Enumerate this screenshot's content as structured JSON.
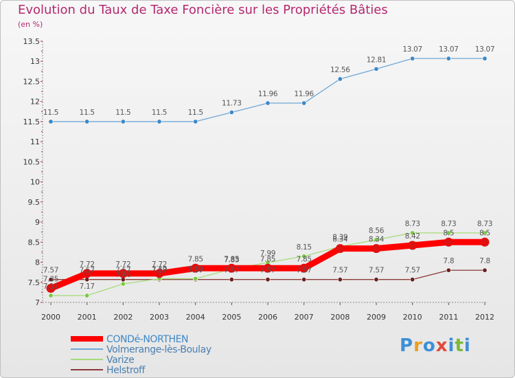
{
  "title": "Evolution du Taux de Taxe Foncière sur les Propriétés Bâties",
  "unit_label": "(en %)",
  "logo": {
    "letters": [
      "P",
      "r",
      "o",
      "x",
      "i",
      "t",
      "i"
    ],
    "colors": [
      "#3c8fd8",
      "#e8a020",
      "#3c8fd8",
      "#e04a3a",
      "#3c8fd8",
      "#7ab83a",
      "#3c8fd8"
    ]
  },
  "chart_data": {
    "type": "line",
    "x": [
      "2000",
      "2001",
      "2002",
      "2003",
      "2004",
      "2005",
      "2006",
      "2007",
      "2008",
      "2009",
      "2010",
      "2011",
      "2012"
    ],
    "ylim": [
      7,
      13.5
    ],
    "yticks": [
      "7",
      "7.5",
      "8",
      "8.5",
      "9",
      "9.5",
      "10",
      "10.5",
      "11",
      "11.5",
      "12",
      "12.5",
      "13",
      "13.5"
    ],
    "grid": false,
    "legend_position": "bottom-left",
    "series": [
      {
        "name": "CONDé-NORTHEN",
        "color": "#ff0000",
        "marker_color": "#e01010",
        "values": [
          7.35,
          7.72,
          7.72,
          7.72,
          7.85,
          7.85,
          7.85,
          7.85,
          8.34,
          8.34,
          8.42,
          8.5,
          8.5
        ],
        "labels": [
          "7.35",
          "7.72",
          "7.72",
          "7.72",
          "7.85",
          "7.85",
          "7.85",
          "7.85",
          "8.34",
          "8.34",
          "8.42",
          "8.5",
          "8.5"
        ]
      },
      {
        "name": "Volmerange-lès-Boulay",
        "color": "#6fa7d6",
        "marker_color": "#3d88c8",
        "values": [
          11.5,
          11.5,
          11.5,
          11.5,
          11.5,
          11.73,
          11.96,
          11.96,
          12.56,
          12.81,
          13.07,
          13.07,
          13.07
        ],
        "labels": [
          "11.5",
          "11.5",
          "11.5",
          "11.5",
          "11.5",
          "11.73",
          "11.96",
          "11.96",
          "12.56",
          "12.81",
          "13.07",
          "13.07",
          "13.07"
        ]
      },
      {
        "name": "Varize",
        "color": "#a6dc7a",
        "marker_color": "#7ac843",
        "values": [
          7.17,
          7.17,
          7.46,
          7.59,
          7.59,
          7.83,
          7.99,
          8.15,
          8.39,
          8.56,
          8.73,
          8.73,
          8.73
        ],
        "labels": [
          "7.17",
          "7.17",
          "7.46",
          "7.59",
          "7.59",
          "7.83",
          "7.99",
          "8.15",
          "8.39",
          "8.56",
          "8.73",
          "8.73",
          "8.73"
        ]
      },
      {
        "name": "Helstroff",
        "color": "#8b3a3a",
        "marker_color": "#6b1f1f",
        "values": [
          7.57,
          7.57,
          7.57,
          7.57,
          7.57,
          7.57,
          7.57,
          7.57,
          7.57,
          7.57,
          7.57,
          7.8,
          7.8
        ],
        "labels": [
          "7.57",
          "7.57",
          "7.57",
          "7.57",
          "7.57",
          "7.57",
          "7.57",
          "7.57",
          "7.57",
          "7.57",
          "7.57",
          "7.8",
          "7.8"
        ]
      }
    ]
  }
}
